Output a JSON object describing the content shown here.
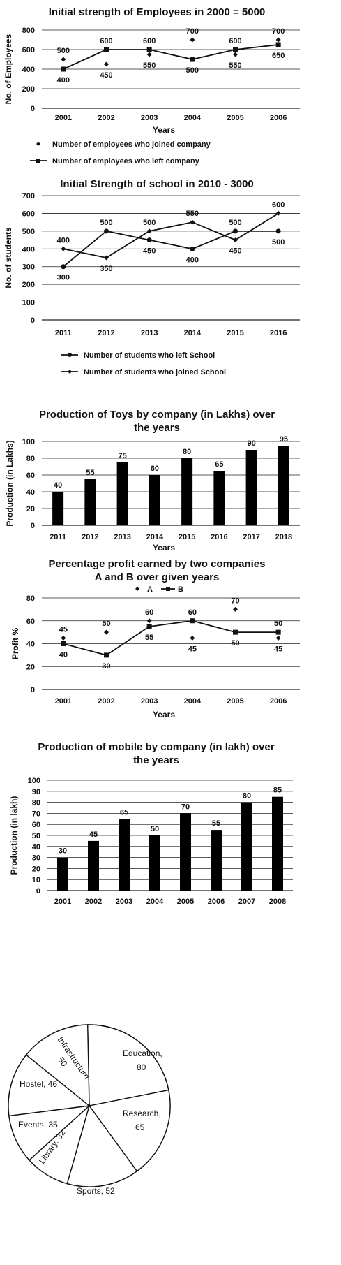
{
  "chart_data": [
    {
      "type": "scatter",
      "title": "Initial strength of Employees in 2000 = 5000",
      "xlabel": "Years",
      "ylabel": "No. of Employees",
      "categories": [
        "2001",
        "2002",
        "2003",
        "2004",
        "2005",
        "2006"
      ],
      "ylim": [
        0,
        800
      ],
      "yticks": [
        0,
        200,
        400,
        600,
        800
      ],
      "grid": true,
      "legend_position": "bottom",
      "series": [
        {
          "name": "Number of employees who joined company",
          "style": "markers",
          "marker": "diamond",
          "values": [
            500,
            450,
            550,
            700,
            550,
            700
          ]
        },
        {
          "name": "Number of employees who left company",
          "style": "line",
          "marker": "square",
          "values": [
            400,
            600,
            600,
            500,
            600,
            650
          ]
        }
      ],
      "data_labels": [
        {
          "x": "2001",
          "above": "500",
          "below": "400"
        },
        {
          "x": "2002",
          "above": "600",
          "below": "450"
        },
        {
          "x": "2003",
          "above": "600",
          "below": "550"
        },
        {
          "x": "2004",
          "above": "700",
          "below": "500"
        },
        {
          "x": "2005",
          "above": "600",
          "below": "550"
        },
        {
          "x": "2006",
          "above": "700",
          "below": "650"
        }
      ]
    },
    {
      "type": "line",
      "title": "Initial Strength of  school in 2010 - 3000",
      "xlabel": "",
      "ylabel": "No. of students",
      "categories": [
        "2011",
        "2012",
        "2013",
        "2014",
        "2015",
        "2016"
      ],
      "ylim": [
        0,
        700
      ],
      "yticks": [
        0,
        100,
        200,
        300,
        400,
        500,
        600,
        700
      ],
      "grid": true,
      "legend_position": "bottom",
      "series": [
        {
          "name": "Number of students who left School",
          "marker": "circle",
          "values": [
            300,
            500,
            450,
            400,
            500,
            500
          ]
        },
        {
          "name": "Number of students who joined School",
          "marker": "diamond",
          "values": [
            400,
            350,
            500,
            550,
            450,
            600
          ]
        }
      ],
      "data_labels": [
        {
          "x": "2011",
          "above": "400",
          "below": "300"
        },
        {
          "x": "2012",
          "above": "500",
          "below": "350"
        },
        {
          "x": "2013",
          "above": "500",
          "below": "450"
        },
        {
          "x": "2014",
          "above": "550",
          "below": "400"
        },
        {
          "x": "2015",
          "above": "500",
          "below": "450"
        },
        {
          "x": "2016",
          "above": "600",
          "below": "500"
        }
      ]
    },
    {
      "type": "bar",
      "title": "Production of Toys by company (in Lakhs) over the years",
      "xlabel": "Years",
      "ylabel": "Production (in Lakhs)",
      "categories": [
        "2011",
        "2012",
        "2013",
        "2014",
        "2015",
        "2016",
        "2017",
        "2018"
      ],
      "values": [
        40,
        55,
        75,
        60,
        80,
        65,
        90,
        95
      ],
      "value_labels": [
        "40",
        "55",
        "75",
        "60",
        "80",
        "65",
        "90",
        "95"
      ],
      "ylim": [
        0,
        100
      ],
      "yticks": [
        0,
        20,
        40,
        60,
        80,
        100
      ],
      "grid": true
    },
    {
      "type": "line",
      "title": "Percentage profit earned by two companies A and B over given years",
      "xlabel": "Years",
      "ylabel": "Profit %",
      "categories": [
        "2001",
        "2002",
        "2003",
        "2004",
        "2005",
        "2006"
      ],
      "ylim": [
        0,
        80
      ],
      "yticks": [
        0,
        20,
        40,
        60,
        80
      ],
      "grid": true,
      "legend_position": "top",
      "series": [
        {
          "name": "A",
          "style": "markers",
          "marker": "diamond",
          "values": [
            45,
            50,
            60,
            45,
            70,
            45
          ]
        },
        {
          "name": "B",
          "style": "line",
          "marker": "square",
          "values": [
            40,
            30,
            55,
            60,
            50,
            50
          ]
        }
      ],
      "data_labels": [
        {
          "x": "2001",
          "above": "45",
          "below": "40"
        },
        {
          "x": "2002",
          "above": "50",
          "below": "30"
        },
        {
          "x": "2003",
          "above": "60",
          "below": "55"
        },
        {
          "x": "2004",
          "above": "60",
          "below": "45"
        },
        {
          "x": "2005",
          "above": "70",
          "below": "50"
        },
        {
          "x": "2006",
          "above": "50",
          "below": "45"
        }
      ]
    },
    {
      "type": "bar",
      "title": "Production of mobile by company (in lakh) over the years",
      "xlabel": "",
      "ylabel": "Production (in lakh)",
      "categories": [
        "2001",
        "2002",
        "2003",
        "2004",
        "2005",
        "2006",
        "2007",
        "2008"
      ],
      "values": [
        30,
        45,
        65,
        50,
        70,
        55,
        80,
        85
      ],
      "value_labels": [
        "30",
        "45",
        "65",
        "50",
        "70",
        "55",
        "80",
        "85"
      ],
      "ylim": [
        0,
        100
      ],
      "yticks": [
        0,
        10,
        20,
        30,
        40,
        50,
        60,
        70,
        80,
        90,
        100
      ],
      "grid": true
    },
    {
      "type": "pie",
      "title": "",
      "slices": [
        {
          "label": "Education,",
          "value_text": "80",
          "value": 80
        },
        {
          "label": "Research,",
          "value_text": "65",
          "value": 65
        },
        {
          "label": "Sports, 52",
          "value": 52
        },
        {
          "label": "Library, 32",
          "value": 32
        },
        {
          "label": "Events, 35",
          "value": 35
        },
        {
          "label": "Hostel, 46",
          "value": 46
        },
        {
          "label": "Infrastructure",
          "value_text": "50",
          "value": 50
        }
      ]
    }
  ]
}
